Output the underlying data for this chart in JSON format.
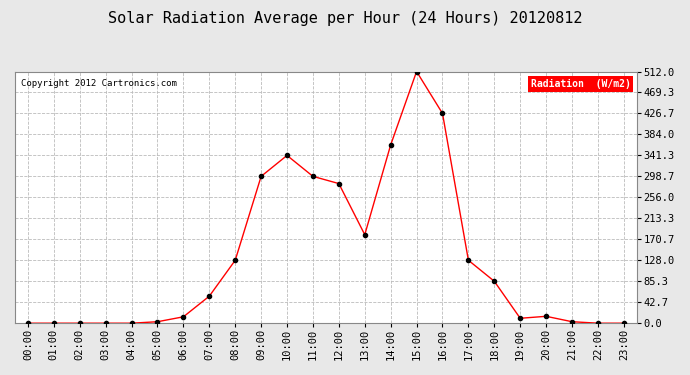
{
  "title": "Solar Radiation Average per Hour (24 Hours) 20120812",
  "copyright": "Copyright 2012 Cartronics.com",
  "legend_label": "Radiation  (W/m2)",
  "hours": [
    "00:00",
    "01:00",
    "02:00",
    "03:00",
    "04:00",
    "05:00",
    "06:00",
    "07:00",
    "08:00",
    "09:00",
    "10:00",
    "11:00",
    "12:00",
    "13:00",
    "14:00",
    "15:00",
    "16:00",
    "17:00",
    "18:00",
    "19:00",
    "20:00",
    "21:00",
    "22:00",
    "23:00"
  ],
  "values": [
    0.0,
    0.0,
    0.0,
    0.0,
    0.0,
    3.0,
    13.0,
    55.0,
    128.0,
    298.7,
    341.3,
    298.7,
    284.0,
    180.0,
    362.7,
    512.0,
    426.7,
    128.0,
    85.3,
    10.0,
    14.0,
    3.0,
    0.0,
    0.0
  ],
  "yticks": [
    0.0,
    42.7,
    85.3,
    128.0,
    170.7,
    213.3,
    256.0,
    298.7,
    341.3,
    384.0,
    426.7,
    469.3,
    512.0
  ],
  "ymax": 512.0,
  "line_color": "red",
  "marker_color": "black",
  "bg_color": "#e8e8e8",
  "plot_bg_color": "#ffffff",
  "grid_color": "#bbbbbb",
  "legend_bg": "red",
  "legend_text_color": "white",
  "title_fontsize": 11,
  "copyright_fontsize": 6.5,
  "tick_fontsize": 7.5,
  "marker_size": 3.0
}
